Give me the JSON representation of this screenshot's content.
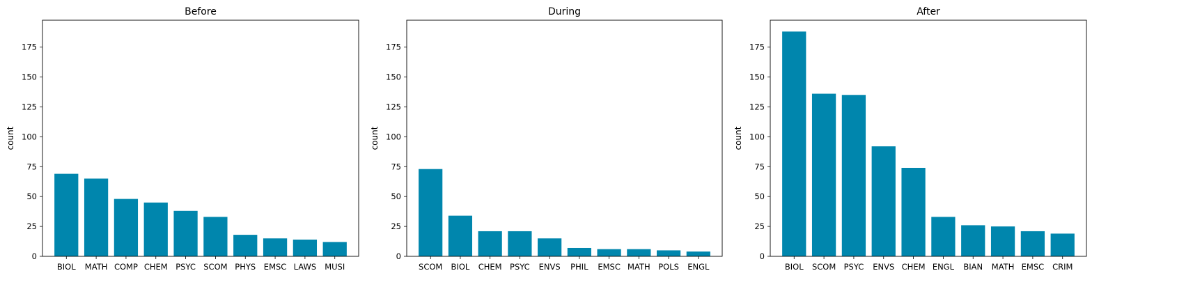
{
  "figure": {
    "bar_color": "#0086ad",
    "axes_color": "#000000",
    "background": "#ffffff"
  },
  "chart_data": [
    {
      "type": "bar",
      "title": "Before",
      "xlabel": "",
      "ylabel": "count",
      "ylim": [
        0,
        197.5
      ],
      "yticks": [
        0,
        25,
        50,
        75,
        100,
        125,
        150,
        175
      ],
      "grid": false,
      "categories": [
        "BIOL",
        "MATH",
        "COMP",
        "CHEM",
        "PSYC",
        "SCOM",
        "PHYS",
        "EMSC",
        "LAWS",
        "MUSI"
      ],
      "values": [
        69,
        65,
        48,
        45,
        38,
        33,
        18,
        15,
        14,
        12
      ]
    },
    {
      "type": "bar",
      "title": "During",
      "xlabel": "",
      "ylabel": "count",
      "ylim": [
        0,
        197.5
      ],
      "yticks": [
        0,
        25,
        50,
        75,
        100,
        125,
        150,
        175
      ],
      "grid": false,
      "categories": [
        "SCOM",
        "BIOL",
        "CHEM",
        "PSYC",
        "ENVS",
        "PHIL",
        "EMSC",
        "MATH",
        "POLS",
        "ENGL"
      ],
      "values": [
        73,
        34,
        21,
        21,
        15,
        7,
        6,
        6,
        5,
        4
      ]
    },
    {
      "type": "bar",
      "title": "After",
      "xlabel": "",
      "ylabel": "count",
      "ylim": [
        0,
        197.5
      ],
      "yticks": [
        0,
        25,
        50,
        75,
        100,
        125,
        150,
        175
      ],
      "grid": false,
      "categories": [
        "BIOL",
        "SCOM",
        "PSYC",
        "ENVS",
        "CHEM",
        "ENGL",
        "BIAN",
        "MATH",
        "EMSC",
        "CRIM"
      ],
      "values": [
        188,
        136,
        135,
        92,
        74,
        33,
        26,
        25,
        21,
        19
      ]
    }
  ]
}
